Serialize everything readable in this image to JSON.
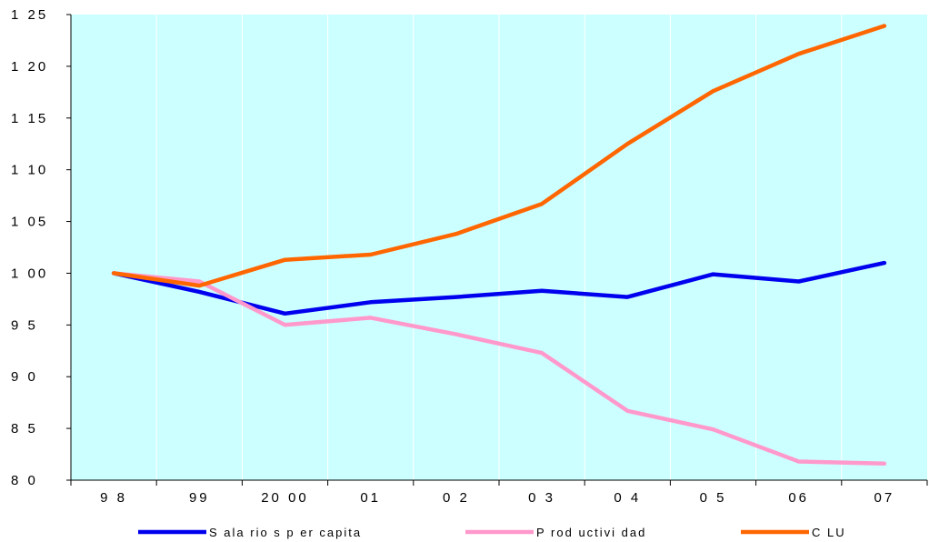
{
  "chart_data": {
    "type": "line",
    "categories": [
      "9 8",
      "99",
      "20 00",
      "01",
      "0 2",
      "0 3",
      "0 4",
      "0 5",
      "06",
      "07"
    ],
    "series": [
      {
        "name": "S ala rio s p er capita",
        "color": "#0000ee",
        "values": [
          100,
          98.2,
          96.1,
          97.2,
          97.7,
          98.3,
          97.7,
          99.9,
          99.2,
          101.0
        ]
      },
      {
        "name": "P rod uctivi dad",
        "color": "#ff99cc",
        "values": [
          100,
          99.2,
          95.0,
          95.7,
          94.1,
          92.3,
          86.7,
          84.9,
          81.8,
          81.6
        ]
      },
      {
        "name": "C LU",
        "color": "#ff6600",
        "values": [
          100,
          98.8,
          101.3,
          101.8,
          103.8,
          106.7,
          112.5,
          117.6,
          121.2,
          123.9
        ]
      }
    ],
    "yticks": [
      "8 0",
      "8 5",
      "9 0",
      "9 5",
      "1 00",
      "1 05",
      "1 10",
      "1 15",
      "1 20",
      "1 25"
    ],
    "ylim": [
      80,
      125
    ],
    "title": "",
    "xlabel": "",
    "ylabel": "",
    "grid": "vertical",
    "legend_position": "bottom",
    "plot_background": "#ccffff"
  }
}
